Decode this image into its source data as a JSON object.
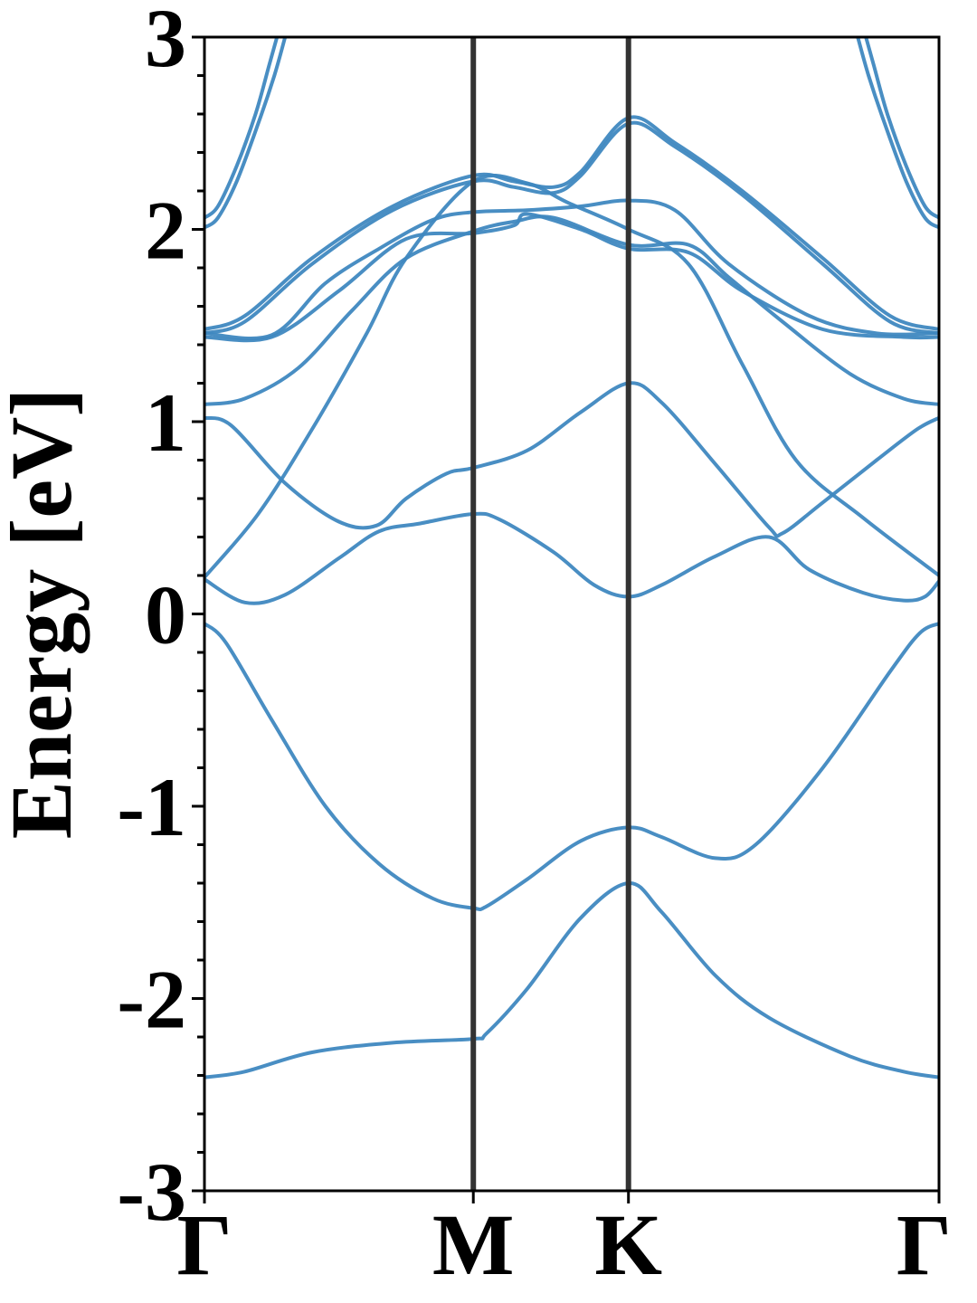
{
  "chart_data": {
    "type": "line",
    "title": "",
    "xlabel": "",
    "ylabel": "Energy [eV]",
    "ylim": [
      -3,
      3
    ],
    "xlim": [
      0,
      3
    ],
    "x_ticks": [
      {
        "label": "Γ",
        "value": 0.0
      },
      {
        "label": "M",
        "value": 1.0
      },
      {
        "label": "K",
        "value": 1.577
      },
      {
        "label": "Γ",
        "value": 2.732
      }
    ],
    "y_ticks": [
      {
        "label": "-3",
        "value": -3
      },
      {
        "label": "-2",
        "value": -2
      },
      {
        "label": "-1",
        "value": -1
      },
      {
        "label": "0",
        "value": 0
      },
      {
        "label": "1",
        "value": 1
      },
      {
        "label": "2",
        "value": 2
      },
      {
        "label": "3",
        "value": 3
      }
    ],
    "y_minor_step": 0.2,
    "kpath_lines": [
      1.0,
      1.577
    ],
    "grid": false,
    "series_color": "#3f88c0",
    "kpath_line_color": "#333333",
    "series": [
      {
        "points": [
          [
            0,
            -2.41
          ],
          [
            0.15,
            -2.38
          ],
          [
            0.4,
            -2.28
          ],
          [
            0.7,
            -2.23
          ],
          [
            1.0,
            -2.21
          ],
          [
            1.05,
            -2.18
          ],
          [
            1.2,
            -1.95
          ],
          [
            1.4,
            -1.58
          ],
          [
            1.577,
            -1.4
          ],
          [
            1.7,
            -1.55
          ],
          [
            1.9,
            -1.88
          ],
          [
            2.1,
            -2.1
          ],
          [
            2.4,
            -2.3
          ],
          [
            2.6,
            -2.38
          ],
          [
            2.732,
            -2.41
          ]
        ]
      },
      {
        "points": [
          [
            0,
            -0.05
          ],
          [
            0.08,
            -0.15
          ],
          [
            0.25,
            -0.55
          ],
          [
            0.45,
            -1.0
          ],
          [
            0.65,
            -1.3
          ],
          [
            0.85,
            -1.48
          ],
          [
            1.0,
            -1.53
          ],
          [
            1.05,
            -1.52
          ],
          [
            1.2,
            -1.38
          ],
          [
            1.4,
            -1.18
          ],
          [
            1.577,
            -1.11
          ],
          [
            1.7,
            -1.16
          ],
          [
            1.9,
            -1.27
          ],
          [
            2.05,
            -1.2
          ],
          [
            2.3,
            -0.8
          ],
          [
            2.55,
            -0.3
          ],
          [
            2.66,
            -0.1
          ],
          [
            2.732,
            -0.05
          ]
        ]
      },
      {
        "points": [
          [
            0,
            0.18
          ],
          [
            0.15,
            0.06
          ],
          [
            0.3,
            0.1
          ],
          [
            0.5,
            0.29
          ],
          [
            0.65,
            0.43
          ],
          [
            0.8,
            0.47
          ],
          [
            1.0,
            0.52
          ],
          [
            1.1,
            0.49
          ],
          [
            1.3,
            0.32
          ],
          [
            1.45,
            0.15
          ],
          [
            1.577,
            0.09
          ],
          [
            1.7,
            0.15
          ],
          [
            1.9,
            0.3
          ],
          [
            2.1,
            0.4
          ],
          [
            2.25,
            0.23
          ],
          [
            2.45,
            0.11
          ],
          [
            2.6,
            0.07
          ],
          [
            2.68,
            0.09
          ],
          [
            2.732,
            0.17
          ]
        ]
      },
      {
        "points": [
          [
            0,
            0.19
          ],
          [
            0.2,
            0.52
          ],
          [
            0.4,
            0.96
          ],
          [
            0.6,
            1.45
          ],
          [
            0.75,
            1.85
          ],
          [
            1.0,
            2.25
          ],
          [
            1.2,
            2.24
          ],
          [
            1.35,
            2.14
          ],
          [
            1.577,
            2.0
          ],
          [
            1.8,
            1.82
          ],
          [
            2.0,
            1.3
          ],
          [
            2.2,
            0.8
          ],
          [
            2.45,
            0.5
          ],
          [
            2.732,
            0.2
          ]
        ]
      },
      {
        "points": [
          [
            0,
            1.02
          ],
          [
            0.1,
            0.98
          ],
          [
            0.3,
            0.68
          ],
          [
            0.5,
            0.48
          ],
          [
            0.64,
            0.46
          ],
          [
            0.75,
            0.6
          ],
          [
            0.9,
            0.73
          ],
          [
            1.0,
            0.76
          ],
          [
            1.2,
            0.85
          ],
          [
            1.4,
            1.05
          ],
          [
            1.577,
            1.2
          ],
          [
            1.7,
            1.1
          ],
          [
            1.9,
            0.78
          ],
          [
            2.1,
            0.45
          ],
          [
            2.15,
            0.42
          ],
          [
            2.3,
            0.58
          ],
          [
            2.5,
            0.8
          ],
          [
            2.65,
            0.96
          ],
          [
            2.732,
            1.02
          ]
        ]
      },
      {
        "points": [
          [
            0,
            1.09
          ],
          [
            0.15,
            1.12
          ],
          [
            0.35,
            1.28
          ],
          [
            0.55,
            1.58
          ],
          [
            0.75,
            1.85
          ],
          [
            1.0,
            1.99
          ],
          [
            1.15,
            2.04
          ],
          [
            1.3,
            2.06
          ],
          [
            1.577,
            1.92
          ],
          [
            1.8,
            1.92
          ],
          [
            1.95,
            1.75
          ],
          [
            2.15,
            1.52
          ],
          [
            2.4,
            1.25
          ],
          [
            2.6,
            1.12
          ],
          [
            2.732,
            1.09
          ]
        ]
      },
      {
        "points": [
          [
            0,
            1.44
          ],
          [
            0.25,
            1.44
          ],
          [
            0.5,
            1.68
          ],
          [
            0.75,
            1.95
          ],
          [
            1.0,
            1.98
          ],
          [
            1.15,
            2.02
          ],
          [
            1.2,
            2.08
          ],
          [
            1.4,
            2.0
          ],
          [
            1.577,
            1.9
          ],
          [
            1.8,
            1.88
          ],
          [
            2.0,
            1.68
          ],
          [
            2.3,
            1.48
          ],
          [
            2.6,
            1.44
          ],
          [
            2.732,
            1.44
          ]
        ]
      },
      {
        "points": [
          [
            0,
            1.46
          ],
          [
            0.25,
            1.45
          ],
          [
            0.45,
            1.72
          ],
          [
            0.65,
            1.9
          ],
          [
            0.85,
            2.05
          ],
          [
            1.0,
            2.09
          ],
          [
            1.2,
            2.1
          ],
          [
            1.4,
            2.12
          ],
          [
            1.577,
            2.15
          ],
          [
            1.75,
            2.1
          ],
          [
            1.95,
            1.82
          ],
          [
            2.25,
            1.55
          ],
          [
            2.5,
            1.46
          ],
          [
            2.732,
            1.46
          ]
        ]
      },
      {
        "points": [
          [
            0,
            1.48
          ],
          [
            0.15,
            1.55
          ],
          [
            0.4,
            1.85
          ],
          [
            0.7,
            2.12
          ],
          [
            1.0,
            2.28
          ],
          [
            1.15,
            2.25
          ],
          [
            1.3,
            2.22
          ],
          [
            1.4,
            2.3
          ],
          [
            1.577,
            2.58
          ],
          [
            1.75,
            2.45
          ],
          [
            2.0,
            2.2
          ],
          [
            2.3,
            1.85
          ],
          [
            2.55,
            1.55
          ],
          [
            2.732,
            1.48
          ]
        ]
      },
      {
        "points": [
          [
            0,
            1.46
          ],
          [
            0.15,
            1.52
          ],
          [
            0.4,
            1.82
          ],
          [
            0.7,
            2.1
          ],
          [
            1.0,
            2.25
          ],
          [
            1.15,
            2.22
          ],
          [
            1.3,
            2.19
          ],
          [
            1.4,
            2.28
          ],
          [
            1.577,
            2.55
          ],
          [
            1.75,
            2.43
          ],
          [
            2.0,
            2.18
          ],
          [
            2.3,
            1.82
          ],
          [
            2.55,
            1.52
          ],
          [
            2.732,
            1.46
          ]
        ]
      },
      {
        "points": [
          [
            0,
            2.01
          ],
          [
            0.05,
            2.06
          ],
          [
            0.12,
            2.25
          ],
          [
            0.2,
            2.55
          ],
          [
            0.26,
            2.8
          ],
          [
            0.3,
            3.0
          ]
        ]
      },
      {
        "points": [
          [
            0,
            2.06
          ],
          [
            0.05,
            2.12
          ],
          [
            0.12,
            2.33
          ],
          [
            0.19,
            2.6
          ],
          [
            0.24,
            2.85
          ],
          [
            0.27,
            3.0
          ]
        ]
      },
      {
        "points": [
          [
            2.732,
            2.01
          ],
          [
            2.68,
            2.06
          ],
          [
            2.61,
            2.25
          ],
          [
            2.53,
            2.55
          ],
          [
            2.47,
            2.8
          ],
          [
            2.43,
            3.0
          ]
        ]
      },
      {
        "points": [
          [
            2.732,
            2.06
          ],
          [
            2.68,
            2.12
          ],
          [
            2.61,
            2.33
          ],
          [
            2.54,
            2.6
          ],
          [
            2.49,
            2.85
          ],
          [
            2.46,
            3.0
          ]
        ]
      }
    ]
  }
}
